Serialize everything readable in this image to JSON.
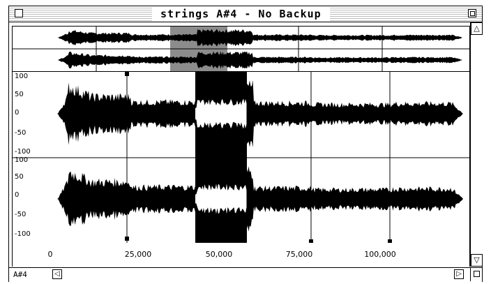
{
  "window": {
    "title": "strings A#4 - No Backup"
  },
  "main": {
    "y_ticks": [
      "100",
      "50",
      "0",
      "-50",
      "-100"
    ]
  },
  "ruler": {
    "x_ticks": [
      "0",
      "25,000",
      "50,000",
      "75,000",
      "100,000"
    ]
  },
  "status": {
    "note_label": "A#4"
  },
  "colors": {
    "waveform": "#000000",
    "selection": "#000000",
    "background": "#ffffff"
  }
}
